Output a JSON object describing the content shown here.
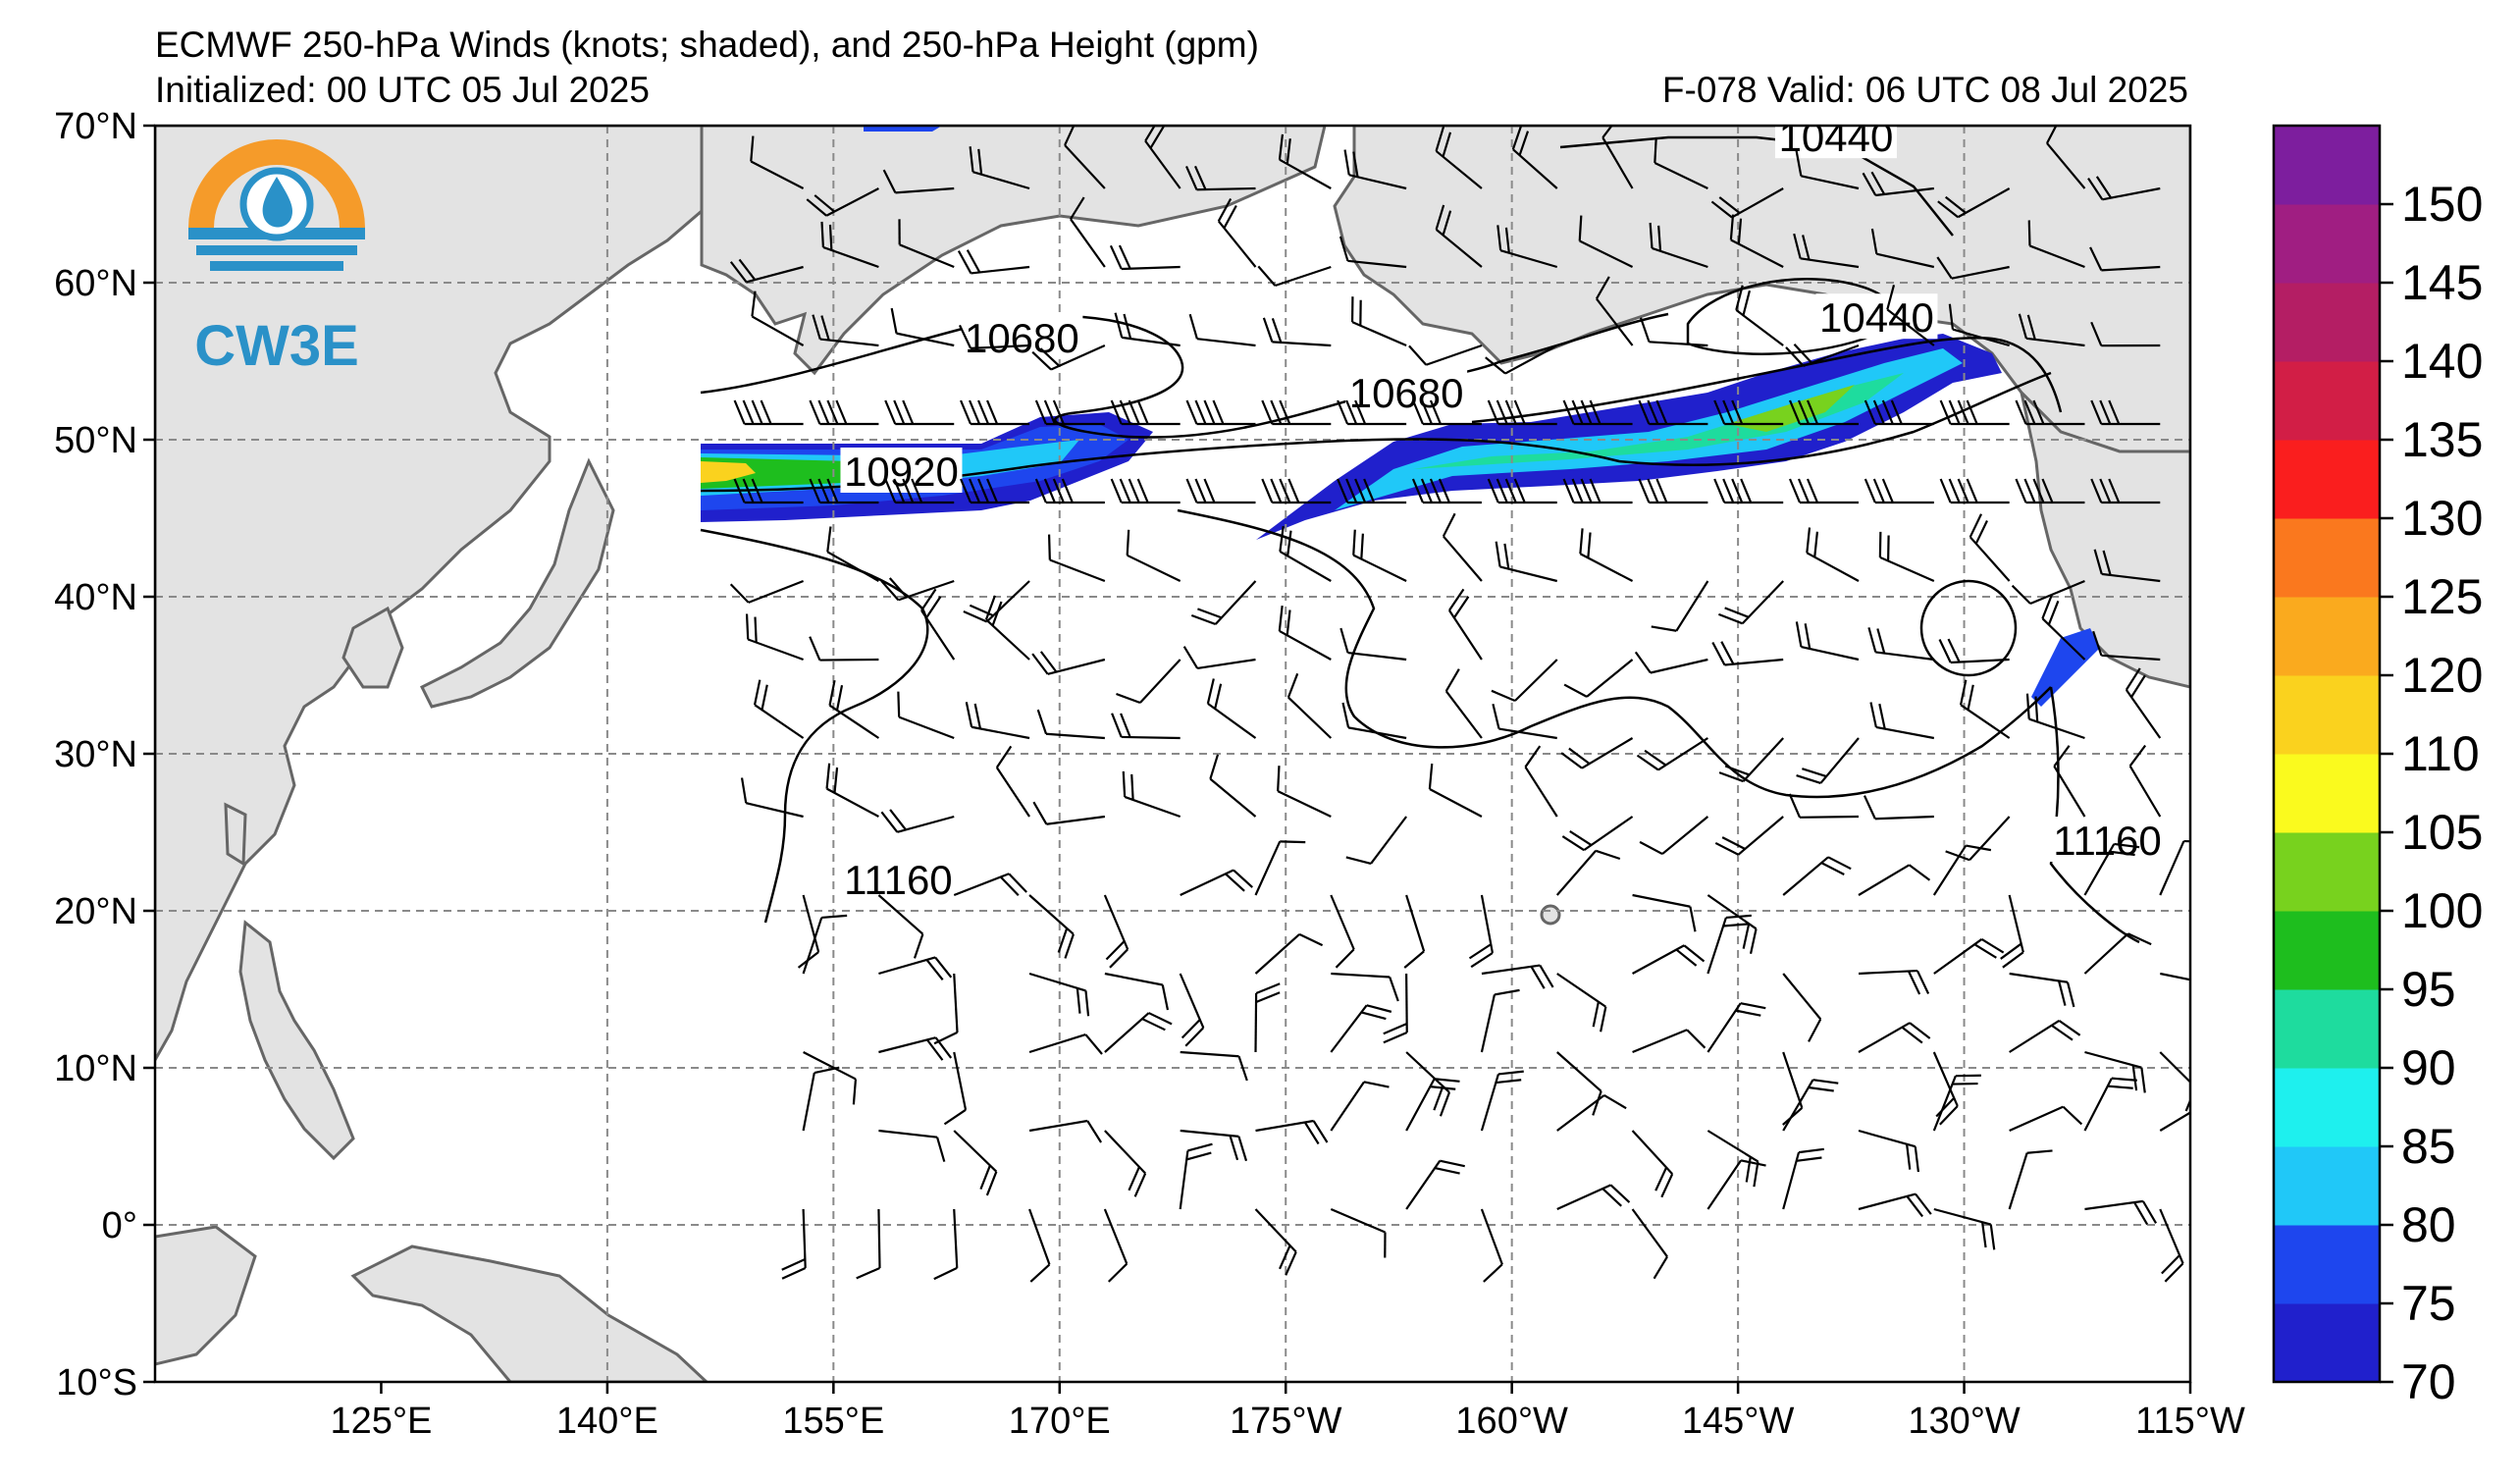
{
  "header": {
    "title": "ECMWF 250-hPa Winds (knots; shaded), and 250-hPa Height (gpm)",
    "initialized": "Initialized: 00 UTC 05 Jul 2025",
    "valid": "F-078  Valid: 06 UTC 08 Jul 2025"
  },
  "logo": {
    "text": "CW3E",
    "icon": "cw3e-drop-logo-icon"
  },
  "map": {
    "lon_range": [
      110,
      245
    ],
    "lat_range": [
      -10,
      70
    ],
    "lon_ticks": [
      {
        "lon": 125,
        "label": "125°E"
      },
      {
        "lon": 140,
        "label": "140°E"
      },
      {
        "lon": 155,
        "label": "155°E"
      },
      {
        "lon": 170,
        "label": "170°E"
      },
      {
        "lon": 185,
        "label": "175°W"
      },
      {
        "lon": 200,
        "label": "160°W"
      },
      {
        "lon": 215,
        "label": "145°W"
      },
      {
        "lon": 230,
        "label": "130°W"
      },
      {
        "lon": 245,
        "label": "115°W"
      }
    ],
    "lat_ticks": [
      {
        "lat": 70,
        "label": "70°N"
      },
      {
        "lat": 60,
        "label": "60°N"
      },
      {
        "lat": 50,
        "label": "50°N"
      },
      {
        "lat": 40,
        "label": "40°N"
      },
      {
        "lat": 30,
        "label": "30°N"
      },
      {
        "lat": 20,
        "label": "20°N"
      },
      {
        "lat": 10,
        "label": "10°N"
      },
      {
        "lat": 0,
        "label": "0°"
      },
      {
        "lat": -10,
        "label": "10°S"
      }
    ],
    "contour_labels": [
      {
        "text": "10440",
        "lon": 221.5,
        "lat": 69.3
      },
      {
        "text": "10440",
        "lon": 224.2,
        "lat": 57.8
      },
      {
        "text": "10680",
        "lon": 167.5,
        "lat": 56.5
      },
      {
        "text": "10680",
        "lon": 193.0,
        "lat": 53.0
      },
      {
        "text": "10920",
        "lon": 159.5,
        "lat": 48.0
      },
      {
        "text": "11160",
        "lon": 159.3,
        "lat": 22.0
      },
      {
        "text": "11160",
        "lon": 239.5,
        "lat": 24.5
      }
    ]
  },
  "colorbar": {
    "levels": [
      70,
      75,
      80,
      85,
      90,
      95,
      100,
      105,
      110,
      120,
      125,
      130,
      135,
      140,
      145,
      150
    ],
    "colors": [
      "#2020cc",
      "#1e46ee",
      "#20c8f8",
      "#1ef0ee",
      "#1edc9e",
      "#1ebe1e",
      "#78d21e",
      "#fafa1e",
      "#fad21e",
      "#faaa1e",
      "#fa781e",
      "#fa1e1e",
      "#d21e46",
      "#b41e64",
      "#a01e82",
      "#7d1e9e"
    ]
  }
}
